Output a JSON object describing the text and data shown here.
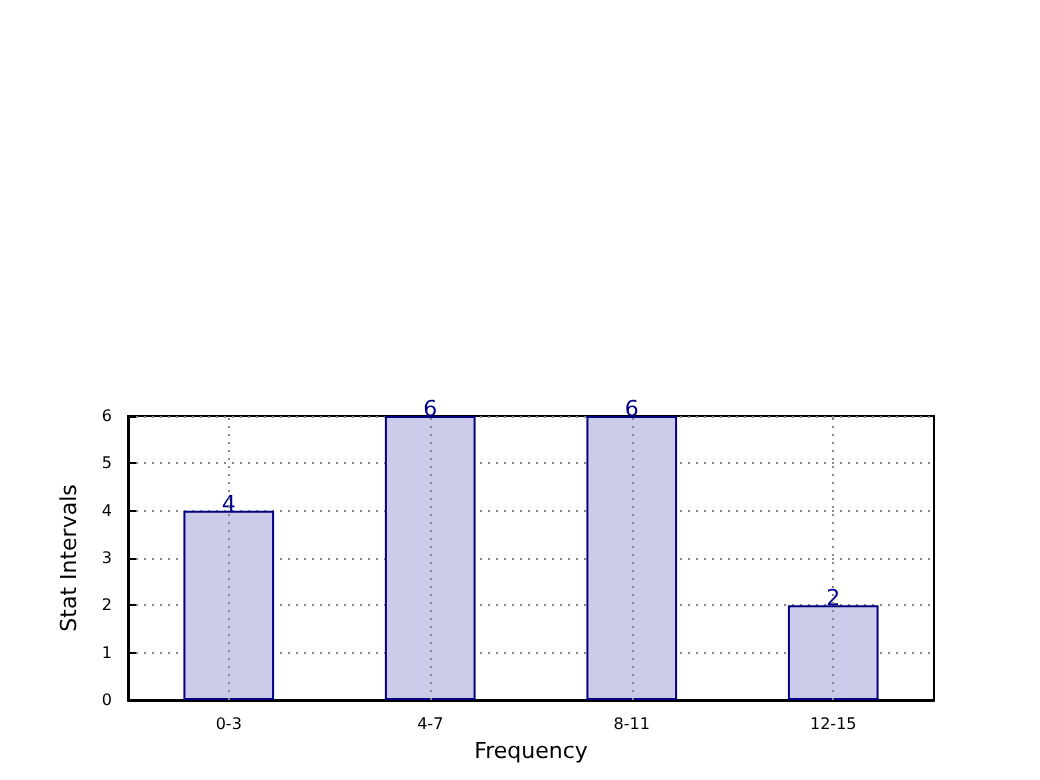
{
  "chart_data": {
    "type": "bar",
    "xlabel": "Frequency",
    "ylabel": "Stat Intervals",
    "categories": [
      "0-3",
      "4-7",
      "8-11",
      "12-15"
    ],
    "values": [
      4,
      6,
      6,
      2
    ],
    "color": "#ccccea",
    "ylim": [
      0,
      6
    ],
    "yticks": [
      0,
      1,
      2,
      3,
      4,
      5,
      6
    ],
    "grid": true,
    "data_labels": true
  }
}
